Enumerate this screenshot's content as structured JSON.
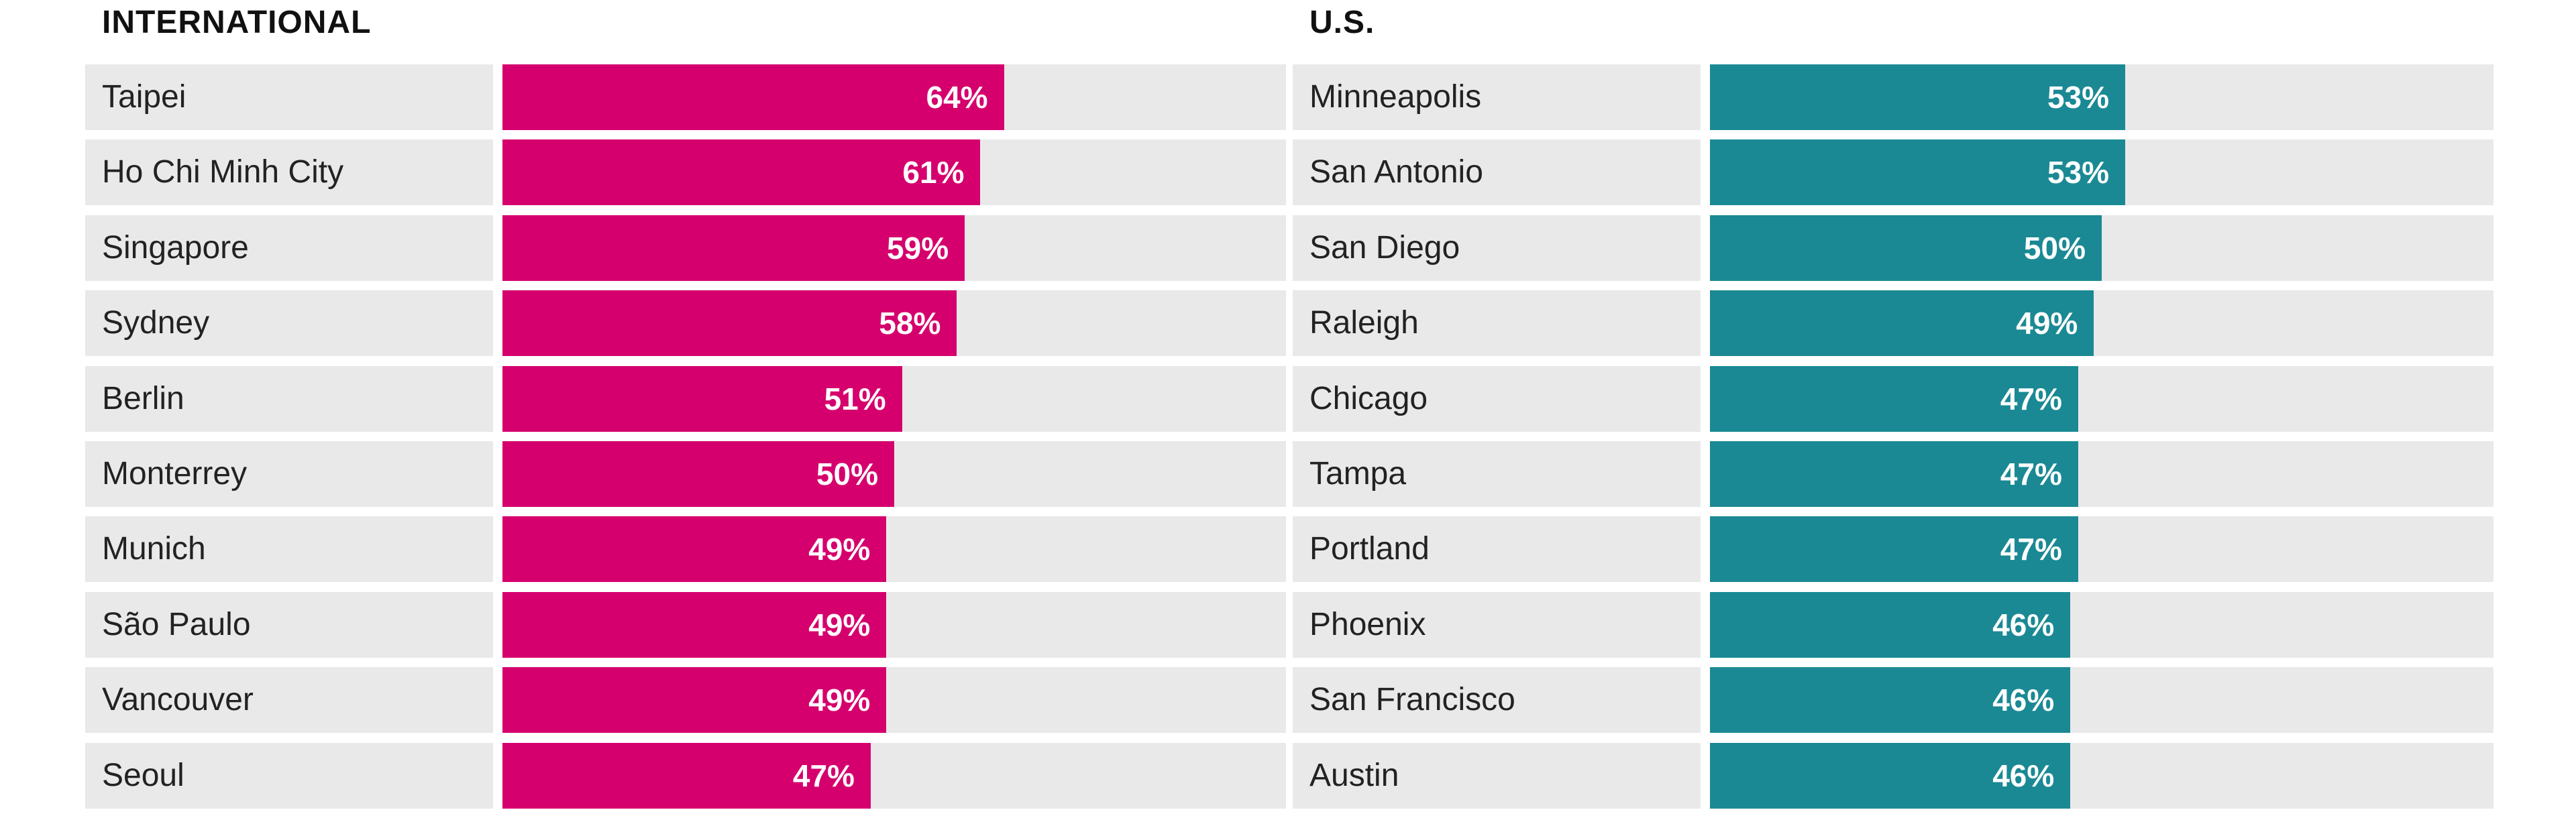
{
  "chart_data": [
    {
      "type": "bar",
      "orientation": "horizontal",
      "title": "INTERNATIONAL",
      "color": "#d5006d",
      "categories": [
        "Taipei",
        "Ho Chi Minh City",
        "Singapore",
        "Sydney",
        "Berlin",
        "Monterrey",
        "Munich",
        "São Paulo",
        "Vancouver",
        "Seoul"
      ],
      "values": [
        64,
        61,
        59,
        58,
        51,
        50,
        49,
        49,
        49,
        47
      ],
      "value_labels": [
        "64%",
        "61%",
        "59%",
        "58%",
        "51%",
        "50%",
        "49%",
        "49%",
        "49%",
        "47%"
      ],
      "xlim": [
        0,
        100
      ],
      "legend": "none",
      "grid": false
    },
    {
      "type": "bar",
      "orientation": "horizontal",
      "title": "U.S.",
      "color": "#1a8994",
      "categories": [
        "Minneapolis",
        "San Antonio",
        "San Diego",
        "Raleigh",
        "Chicago",
        "Tampa",
        "Portland",
        "Phoenix",
        "San Francisco",
        "Austin"
      ],
      "values": [
        53,
        53,
        50,
        49,
        47,
        47,
        47,
        46,
        46,
        46
      ],
      "value_labels": [
        "53%",
        "53%",
        "50%",
        "49%",
        "47%",
        "47%",
        "47%",
        "46%",
        "46%",
        "46%"
      ],
      "xlim": [
        0,
        100
      ],
      "legend": "none",
      "grid": false
    }
  ],
  "colors": {
    "track_background": "#e9e9e9",
    "label_text": "#222222",
    "title_text": "#111111"
  }
}
